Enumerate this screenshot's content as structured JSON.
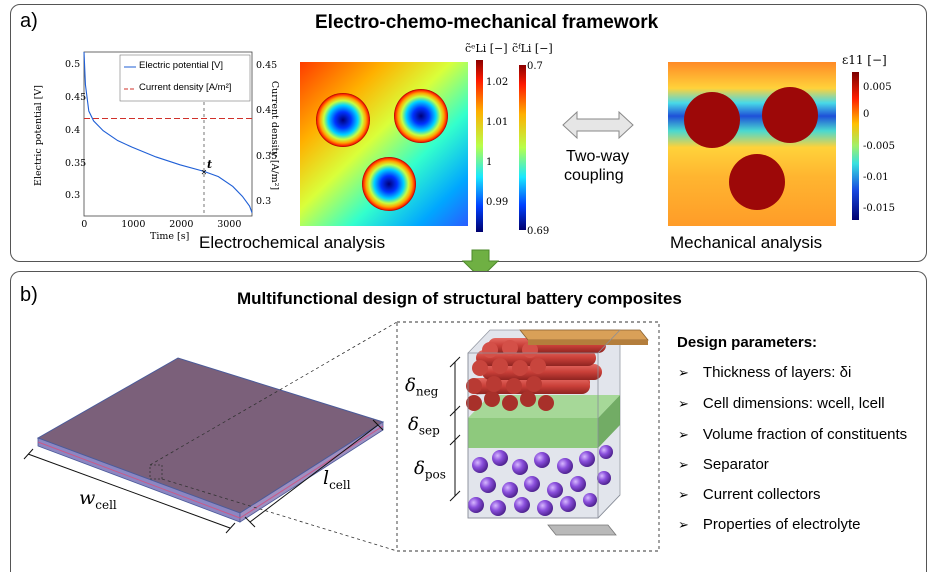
{
  "panel_a": {
    "letter": "a)",
    "title": "Electro-chemo-mechanical framework",
    "caption_left": "Electrochemical analysis",
    "caption_right": "Mechanical analysis",
    "coupling_line1": "Two-way",
    "coupling_line2": "coupling",
    "plot": {
      "ylabel": "Electric potential [V]",
      "y2label": "Current density [A/m²]",
      "xlabel": "Time [s]",
      "legend_potential": "Electric potential [V]",
      "legend_current": "Current density [A/m²]",
      "marker_label": "t",
      "y_ticks": [
        "0.5",
        "0.45",
        "0.4",
        "0.35",
        "0.3"
      ],
      "y2_ticks": [
        "0.45",
        "0.4",
        "0.35",
        "0.3"
      ],
      "x_ticks": [
        "0",
        "1000",
        "2000",
        "3000"
      ],
      "colors": {
        "potential": "#1f5fd6",
        "current": "#d0302a"
      }
    },
    "colorbar_e": {
      "title": "c̃ᵉLi [−]",
      "ticks": [
        "1.02",
        "1.01",
        "1",
        "0.99"
      ]
    },
    "colorbar_f": {
      "title": "c̃ᶠLi [−]",
      "top": "0.7",
      "bottom": "0.69"
    },
    "colorbar_strain": {
      "title": "ε11 [−]",
      "ticks": [
        "0.005",
        "0",
        "-0.005",
        "-0.01",
        "-0.015"
      ]
    }
  },
  "panel_b": {
    "letter": "b)",
    "title": "Multifunctional design of structural battery composites",
    "w_label": "w",
    "w_sub": "cell",
    "l_label": "l",
    "l_sub": "cell",
    "delta_neg": "neg",
    "delta_sep": "sep",
    "delta_pos": "pos",
    "delta_symbol": "δ",
    "design_heading": "Design parameters:",
    "design_items": [
      "Thickness of layers: δi",
      "Cell dimensions: wcell, lcell",
      "Volume fraction of constituents",
      "Separator",
      "Current collectors",
      "Properties of electrolyte"
    ],
    "colors": {
      "fiber": "#c9453f",
      "separator": "#6fbf5a",
      "particle": "#7b3fc9",
      "collector": "#c99147"
    }
  },
  "chart_data": {
    "type": "line",
    "title": "",
    "xlabel": "Time [s]",
    "ylabel": "Electric potential [V]",
    "y2label": "Current density [A/m²]",
    "xlim": [
      0,
      3500
    ],
    "ylim": [
      0.27,
      0.52
    ],
    "y2lim": [
      0.285,
      0.465
    ],
    "series": [
      {
        "name": "Electric potential [V]",
        "axis": "left",
        "x": [
          0,
          30,
          100,
          200,
          400,
          700,
          1000,
          1500,
          2000,
          2500,
          2800,
          3100,
          3300,
          3450,
          3500
        ],
        "y": [
          0.52,
          0.47,
          0.43,
          0.415,
          0.4,
          0.385,
          0.375,
          0.36,
          0.348,
          0.338,
          0.33,
          0.315,
          0.3,
          0.285,
          0.275
        ]
      },
      {
        "name": "Current density [A/m²]",
        "axis": "right",
        "x": [
          0,
          3500
        ],
        "y": [
          0.392,
          0.392
        ]
      }
    ],
    "marker_x": 2500
  }
}
